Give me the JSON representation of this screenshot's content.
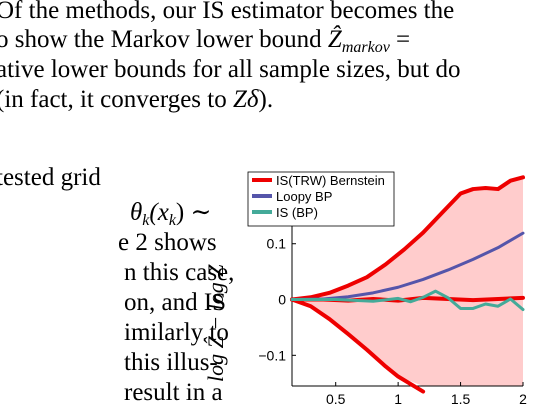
{
  "paragraph_top": {
    "line1": "Of the methods, our IS estimator becomes the",
    "line2_pre": "o show the Markov lower bound ",
    "line2_math": "Ẑ",
    "line2_sub": "markov",
    "line2_post": " =",
    "line3_pre": "ative lower bounds for all sample sizes, but do",
    "line4_pre": " (in fact, it converges to ",
    "line4_math": "Zδ",
    "line4_post": ")."
  },
  "paragraph_left": {
    "w1": "tested grid",
    "w2_math": "θ",
    "w2_sub": "k",
    "w2_post": "(x",
    "w2_sub2": "k",
    "w2_end": ") ∼",
    "w3": "e 2 shows",
    "w4": "n this case,",
    "w5": "on, and IS",
    "w6": "imilarly to",
    "w7": " this illus-",
    "w8": "result in a"
  },
  "chart_data": {
    "type": "line",
    "ylabel": "log Ẑ − log Z",
    "xlabel": "",
    "xlim": [
      0.15,
      2.0
    ],
    "ylim": [
      -0.155,
      0.225
    ],
    "xticks": [
      "0.5",
      "1",
      "1.5",
      "2"
    ],
    "yticks": [
      "0.1",
      "0",
      "−0.1"
    ],
    "xtick_values": [
      0.5,
      1.0,
      1.5,
      2.0
    ],
    "ytick_values": [
      0.1,
      0.0,
      -0.1
    ],
    "legend_placement": "top-left",
    "series": [
      {
        "name": "IS(TRW) Bernstein",
        "color": "#ee0000",
        "x": [
          0.15,
          0.3,
          0.45,
          0.6,
          0.75,
          0.9,
          1.05,
          1.2,
          1.35,
          1.5,
          1.6,
          1.7,
          1.8,
          1.9,
          2.0
        ],
        "y": [
          0.0,
          0.004,
          0.012,
          0.025,
          0.04,
          0.063,
          0.09,
          0.12,
          0.155,
          0.19,
          0.198,
          0.2,
          0.198,
          0.213,
          0.219
        ]
      },
      {
        "name": "",
        "color": "#ee0000",
        "x": [
          0.15,
          0.3,
          0.45,
          0.6,
          0.75,
          0.9,
          1.0,
          1.2
        ],
        "y": [
          0.0,
          -0.012,
          -0.035,
          -0.062,
          -0.09,
          -0.12,
          -0.138,
          -0.165
        ]
      },
      {
        "name": "",
        "color": "#ee0000",
        "x": [
          0.15,
          0.4,
          0.6,
          0.8,
          1.0,
          1.2,
          1.4,
          1.6,
          1.8,
          2.0
        ],
        "y": [
          0.0,
          0.0,
          -0.002,
          0.001,
          -0.002,
          0.003,
          0.001,
          -0.001,
          0.001,
          0.003
        ]
      },
      {
        "name": "Loopy BP",
        "color": "#5555aa",
        "x": [
          0.15,
          0.4,
          0.6,
          0.8,
          1.0,
          1.2,
          1.4,
          1.6,
          1.8,
          2.0
        ],
        "y": [
          0.0,
          0.001,
          0.005,
          0.012,
          0.022,
          0.036,
          0.053,
          0.072,
          0.093,
          0.119
        ]
      },
      {
        "name": "IS (BP)",
        "color": "#44aa99",
        "x": [
          0.15,
          0.5,
          0.8,
          1.0,
          1.1,
          1.2,
          1.3,
          1.4,
          1.5,
          1.6,
          1.7,
          1.8,
          1.9,
          2.0
        ],
        "y": [
          0.0,
          0.0,
          -0.003,
          0.002,
          -0.004,
          0.004,
          0.015,
          0.003,
          -0.016,
          -0.016,
          -0.008,
          -0.012,
          0.001,
          -0.018
        ]
      }
    ],
    "band": {
      "color": "#ffcccc",
      "x_upper": [
        0.15,
        0.3,
        0.45,
        0.6,
        0.75,
        0.9,
        1.05,
        1.2,
        1.35,
        1.5,
        1.6,
        1.7,
        1.8,
        1.9,
        2.0
      ],
      "y_upper": [
        0.0,
        0.004,
        0.012,
        0.025,
        0.04,
        0.063,
        0.09,
        0.12,
        0.155,
        0.19,
        0.198,
        0.2,
        0.198,
        0.213,
        0.219
      ],
      "x_lower": [
        2.0,
        1.6,
        1.2,
        1.0,
        0.9,
        0.75,
        0.6,
        0.45,
        0.3,
        0.15
      ],
      "y_lower": [
        -0.155,
        -0.155,
        -0.155,
        -0.138,
        -0.12,
        -0.09,
        -0.062,
        -0.035,
        -0.012,
        0.0
      ]
    }
  }
}
